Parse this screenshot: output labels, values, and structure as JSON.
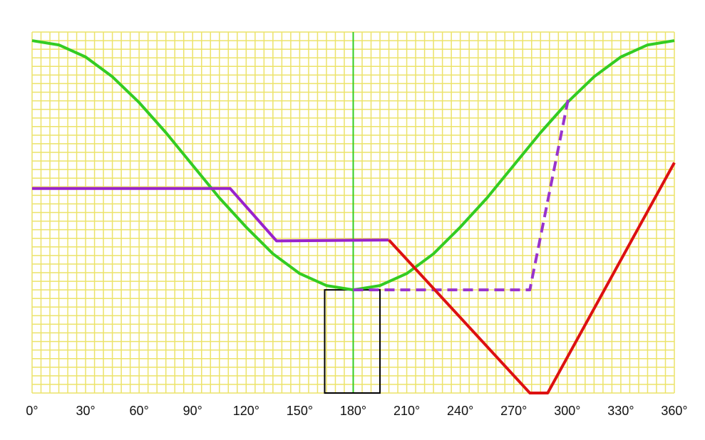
{
  "chart_data": {
    "type": "line",
    "xlim": [
      0,
      360
    ],
    "ylim": [
      0,
      42
    ],
    "xticks": [
      {
        "value": 0,
        "label": "0°"
      },
      {
        "value": 30,
        "label": "30°"
      },
      {
        "value": 60,
        "label": "60°"
      },
      {
        "value": 90,
        "label": "90°"
      },
      {
        "value": 120,
        "label": "120°"
      },
      {
        "value": 150,
        "label": "150°"
      },
      {
        "value": 180,
        "label": "180°"
      },
      {
        "value": 210,
        "label": "210°"
      },
      {
        "value": 240,
        "label": "240°"
      },
      {
        "value": 270,
        "label": "270°"
      },
      {
        "value": 300,
        "label": "300°"
      },
      {
        "value": 330,
        "label": "330°"
      },
      {
        "value": 360,
        "label": "360°"
      }
    ],
    "grid": {
      "x_step": 5,
      "y_step": 1,
      "color": "#ece36a"
    },
    "series": [
      {
        "color": "#33cc22",
        "dash": false,
        "x": [
          0,
          15,
          30,
          45,
          60,
          75,
          90,
          105,
          120,
          135,
          150,
          165,
          180,
          195,
          210,
          225,
          240,
          255,
          270,
          285,
          300,
          315,
          330,
          345,
          360
        ],
        "values": [
          41,
          40.5,
          39.1,
          36.8,
          33.8,
          30.3,
          26.5,
          22.7,
          19.3,
          16.2,
          13.9,
          12.5,
          12,
          12.5,
          13.9,
          16.2,
          19.3,
          22.7,
          26.5,
          30.3,
          33.8,
          36.8,
          39.1,
          40.5,
          41
        ]
      },
      {
        "color": "#9922cc",
        "dash": false,
        "x": [
          0,
          111,
          137,
          200
        ],
        "values": [
          23.8,
          23.8,
          17.7,
          17.8
        ]
      },
      {
        "color": "#9933cc",
        "dash": true,
        "x": [
          180,
          279,
          301
        ],
        "values": [
          12,
          12,
          34.7
        ]
      },
      {
        "color": "#dd1111",
        "dash": false,
        "x": [
          200,
          279,
          289,
          360
        ],
        "values": [
          17.8,
          0,
          0,
          26.8
        ]
      }
    ],
    "vline": {
      "x": 180,
      "color": "#33cc22"
    },
    "box": {
      "xlim": [
        164,
        195
      ],
      "ylim": [
        0,
        12
      ],
      "color": "#000000"
    }
  }
}
